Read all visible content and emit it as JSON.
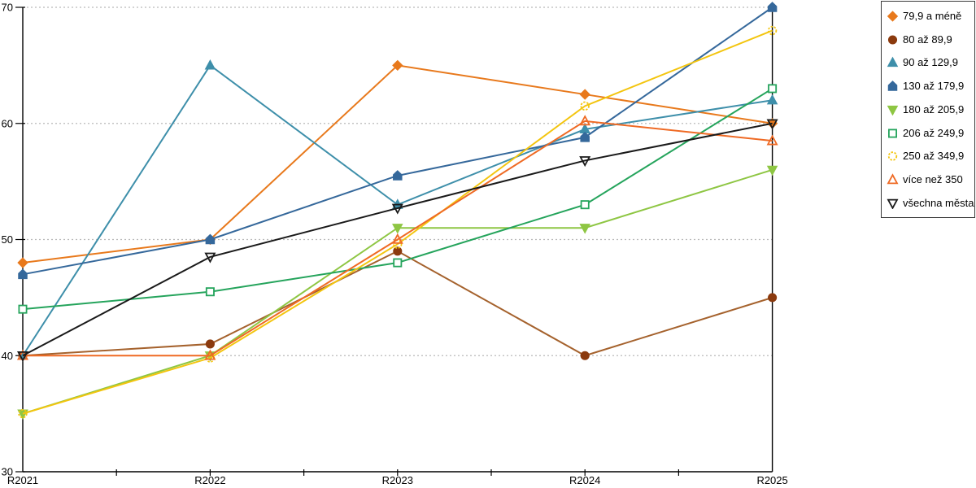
{
  "chart_data": {
    "type": "line",
    "title": "",
    "xlabel": "",
    "ylabel": "",
    "categories": [
      "R2021",
      "R2022",
      "R2023",
      "R2024",
      "R2025"
    ],
    "y_ticks": [
      30,
      40,
      50,
      60,
      70
    ],
    "ylim": [
      30,
      70
    ],
    "grid": "horizontal dotted gridlines at 40, 50, 60, 70",
    "legend_position": "right",
    "series": [
      {
        "name": "79,9 a méně",
        "marker": "diamond",
        "fill": "filled",
        "color": "#E8791C",
        "values": [
          48,
          50,
          65,
          62.5,
          60
        ]
      },
      {
        "name": "80 až 89,9",
        "marker": "circle",
        "fill": "filled",
        "color": "#A5622D",
        "marker_color": "#8B3A0E",
        "values": [
          40,
          41,
          49,
          40,
          45
        ]
      },
      {
        "name": "90 až 129,9",
        "marker": "triangle-up",
        "fill": "filled",
        "color": "#3E8FAA",
        "values": [
          40,
          65,
          53,
          59.5,
          62
        ]
      },
      {
        "name": "130 až 179,9",
        "marker": "pentagon",
        "fill": "filled",
        "color": "#35689B",
        "values": [
          47,
          50,
          55.5,
          58.8,
          70
        ]
      },
      {
        "name": "180 až 205,9",
        "marker": "triangle-down",
        "fill": "filled",
        "color": "#8EC643",
        "values": [
          35,
          40,
          51,
          51,
          56
        ]
      },
      {
        "name": "206 až 249,9",
        "marker": "square",
        "fill": "open",
        "color": "#25A45C",
        "values": [
          44,
          45.5,
          48,
          53,
          63
        ]
      },
      {
        "name": "250 až 349,9",
        "marker": "circle-dashed",
        "fill": "open",
        "color": "#F3C50F",
        "values": [
          35,
          39.8,
          49.6,
          61.5,
          68
        ]
      },
      {
        "name": "více než 350",
        "marker": "triangle-up",
        "fill": "open",
        "color": "#EF6A24",
        "values": [
          40,
          40,
          50,
          60.2,
          58.5
        ]
      },
      {
        "name": "všechna města",
        "marker": "triangle-down",
        "fill": "open",
        "color": "#1A1A1A",
        "values": [
          40,
          48.5,
          52.7,
          56.8,
          60
        ]
      }
    ]
  }
}
